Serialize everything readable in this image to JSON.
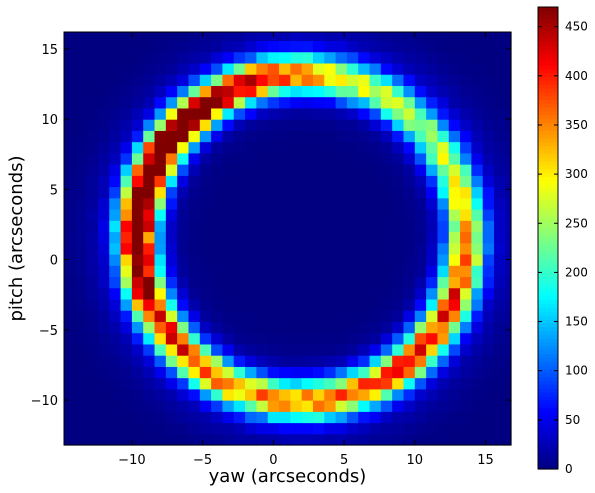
{
  "chart_data": {
    "type": "heatmap",
    "title": "",
    "xlabel": "yaw (arcseconds)",
    "ylabel": "pitch (arcseconds)",
    "xlim": [
      -14.8,
      16.8
    ],
    "ylim": [
      -13.2,
      16.2
    ],
    "x_ticks": [
      "−10",
      "−5",
      "0",
      "5",
      "10",
      "15"
    ],
    "x_tick_values": [
      -10,
      -5,
      0,
      5,
      10,
      15
    ],
    "y_ticks": [
      "−10",
      "−5",
      "0",
      "5",
      "10",
      "15"
    ],
    "y_tick_values": [
      -10,
      -5,
      0,
      5,
      10,
      15
    ],
    "bin_size_arcsec": 0.8,
    "ring": {
      "center": [
        2.0,
        1.6
      ],
      "radius": 11.6,
      "width_sigma": 0.95,
      "peak_counts": 470,
      "brightest_side": "left and lower-right",
      "dimmest_side": "bottom"
    },
    "colorbar": {
      "colormap": "jet",
      "min": 0,
      "max": 470,
      "ticks": [
        "0",
        "50",
        "100",
        "150",
        "200",
        "250",
        "300",
        "350",
        "400",
        "450"
      ],
      "tick_values": [
        0,
        50,
        100,
        150,
        200,
        250,
        300,
        350,
        400,
        450
      ]
    },
    "grid": false,
    "background_value": 0
  }
}
